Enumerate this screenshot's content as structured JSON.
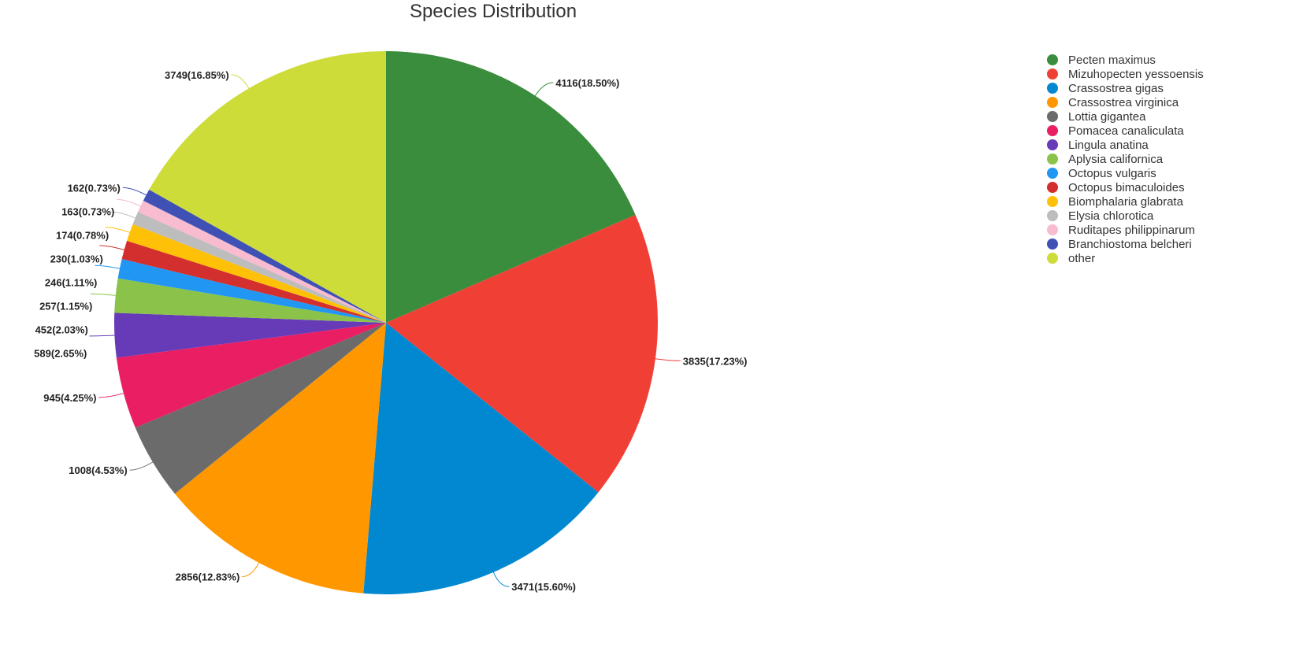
{
  "chart_data": {
    "type": "pie",
    "title": "Species Distribution",
    "legend_position": "top-right",
    "start_angle": "12 o'clock",
    "direction": "clockwise",
    "slices": [
      {
        "name": "Pecten maximus",
        "value": 4116,
        "percent": "18.50%",
        "label": "4116(18.50%)",
        "color": "#3a8d3d"
      },
      {
        "name": "Mizuhopecten yessoensis",
        "value": 3835,
        "percent": "17.23%",
        "label": "3835(17.23%)",
        "color": "#f04036"
      },
      {
        "name": "Crassostrea gigas",
        "value": 3471,
        "percent": "15.60%",
        "label": "3471(15.60%)",
        "color": "#0288d1"
      },
      {
        "name": "Crassostrea virginica",
        "value": 2856,
        "percent": "12.83%",
        "label": "2856(12.83%)",
        "color": "#ff9800"
      },
      {
        "name": "Lottia gigantea",
        "value": 1008,
        "percent": "4.53%",
        "label": "1008(4.53%)",
        "color": "#6b6b6b"
      },
      {
        "name": "Pomacea canaliculata",
        "value": 945,
        "percent": "4.25%",
        "label": "945(4.25%)",
        "color": "#e91e63"
      },
      {
        "name": "Lingula anatina",
        "value": 589,
        "percent": "2.65%",
        "label": "589(2.65%)",
        "color": "#673ab7"
      },
      {
        "name": "Aplysia californica",
        "value": 452,
        "percent": "2.03%",
        "label": "452(2.03%)",
        "color": "#8bc34a"
      },
      {
        "name": "Octopus vulgaris",
        "value": 257,
        "percent": "1.15%",
        "label": "257(1.15%)",
        "color": "#2196f3"
      },
      {
        "name": "Octopus bimaculoides",
        "value": 246,
        "percent": "1.11%",
        "label": "246(1.11%)",
        "color": "#d32f2f"
      },
      {
        "name": "Biomphalaria glabrata",
        "value": 230,
        "percent": "1.03%",
        "label": "230(1.03%)",
        "color": "#ffc107"
      },
      {
        "name": "Elysia chlorotica",
        "value": 174,
        "percent": "0.78%",
        "label": "174(0.78%)",
        "color": "#bdbdbd"
      },
      {
        "name": "Ruditapes philippinarum",
        "value": 163,
        "percent": "0.73%",
        "label": "163(0.73%)",
        "color": "#f8bbd0"
      },
      {
        "name": "Branchiostoma belcheri",
        "value": 162,
        "percent": "0.73%",
        "label": "162(0.73%)",
        "color": "#3f51b5"
      },
      {
        "name": "other",
        "value": 3749,
        "percent": "16.85%",
        "label": "3749(16.85%)",
        "color": "#cddc39"
      }
    ]
  }
}
